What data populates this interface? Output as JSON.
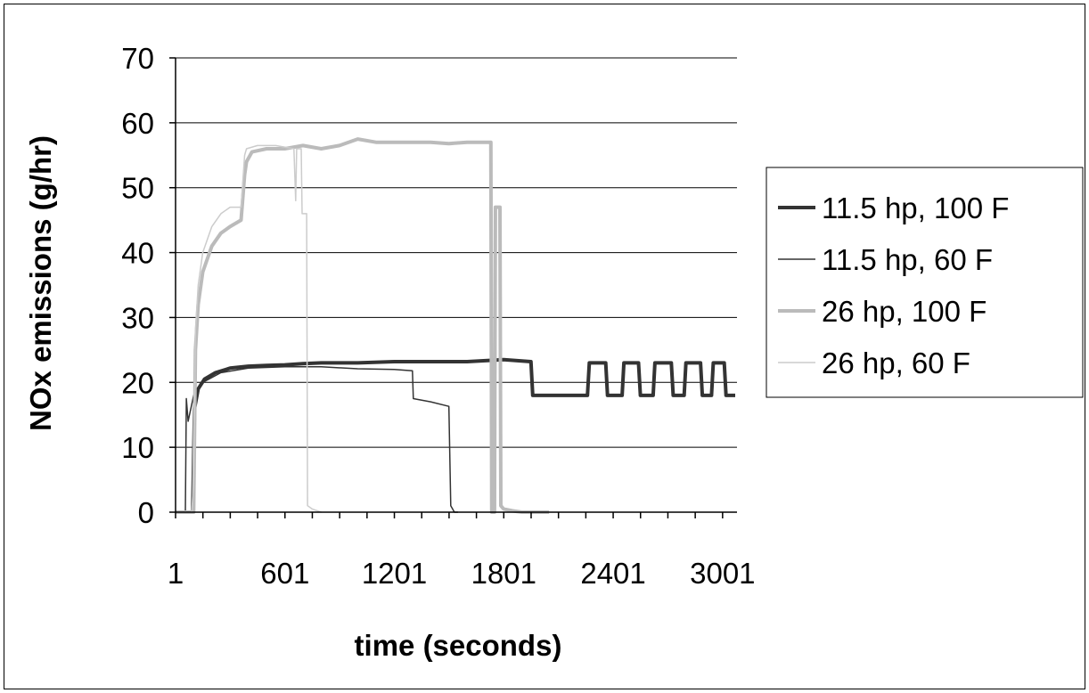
{
  "chart_data": {
    "type": "line",
    "title": "",
    "xlabel": "time (seconds)",
    "ylabel": "NOx emissions (g/hr)",
    "xlim": [
      1,
      3080
    ],
    "ylim": [
      0,
      70
    ],
    "x_ticks": [
      1,
      601,
      1201,
      1801,
      2401,
      3001
    ],
    "y_ticks": [
      0,
      10,
      20,
      30,
      40,
      50,
      60,
      70
    ],
    "grid": "horizontal",
    "legend_position": "right",
    "series": [
      {
        "name": "11.5 hp, 100 F",
        "color": "#333333",
        "style": "thick",
        "points": [
          [
            1,
            0
          ],
          [
            80,
            0
          ],
          [
            95,
            0
          ],
          [
            105,
            16
          ],
          [
            125,
            19
          ],
          [
            160,
            20.5
          ],
          [
            220,
            21.5
          ],
          [
            300,
            22.2
          ],
          [
            400,
            22.5
          ],
          [
            500,
            22.6
          ],
          [
            600,
            22.7
          ],
          [
            700,
            22.9
          ],
          [
            800,
            23
          ],
          [
            1000,
            23
          ],
          [
            1200,
            23.2
          ],
          [
            1400,
            23.2
          ],
          [
            1600,
            23.2
          ],
          [
            1800,
            23.5
          ],
          [
            1950,
            23.2
          ],
          [
            1960,
            18
          ],
          [
            2000,
            18
          ],
          [
            2100,
            18
          ],
          [
            2200,
            18
          ],
          [
            2260,
            18
          ],
          [
            2270,
            23
          ],
          [
            2360,
            23
          ],
          [
            2370,
            18
          ],
          [
            2450,
            18
          ],
          [
            2460,
            23
          ],
          [
            2540,
            23
          ],
          [
            2550,
            18
          ],
          [
            2620,
            18
          ],
          [
            2630,
            23
          ],
          [
            2720,
            23
          ],
          [
            2730,
            18
          ],
          [
            2790,
            18
          ],
          [
            2800,
            23
          ],
          [
            2880,
            23
          ],
          [
            2890,
            18
          ],
          [
            2940,
            18
          ],
          [
            2950,
            23
          ],
          [
            3010,
            23
          ],
          [
            3020,
            18
          ],
          [
            3070,
            18
          ]
        ]
      },
      {
        "name": "11.5 hp, 60 F",
        "color": "#333333",
        "style": "thin",
        "points": [
          [
            1,
            0
          ],
          [
            55,
            0
          ],
          [
            60,
            17.5
          ],
          [
            70,
            14
          ],
          [
            100,
            18
          ],
          [
            150,
            20
          ],
          [
            250,
            21.5
          ],
          [
            400,
            22.2
          ],
          [
            600,
            22.4
          ],
          [
            800,
            22.4
          ],
          [
            1000,
            22.1
          ],
          [
            1200,
            22
          ],
          [
            1300,
            21.8
          ],
          [
            1305,
            17.5
          ],
          [
            1400,
            17
          ],
          [
            1500,
            16.3
          ],
          [
            1510,
            1
          ],
          [
            1530,
            0
          ],
          [
            1550,
            0
          ]
        ]
      },
      {
        "name": "26 hp, 100 F",
        "color": "#bbbbbb",
        "style": "thick",
        "points": [
          [
            1,
            0
          ],
          [
            90,
            0
          ],
          [
            100,
            0
          ],
          [
            110,
            25
          ],
          [
            125,
            32
          ],
          [
            150,
            37
          ],
          [
            200,
            41
          ],
          [
            250,
            43
          ],
          [
            300,
            44
          ],
          [
            360,
            45
          ],
          [
            380,
            52
          ],
          [
            390,
            54
          ],
          [
            420,
            55.5
          ],
          [
            500,
            56
          ],
          [
            600,
            56
          ],
          [
            700,
            56.5
          ],
          [
            800,
            56
          ],
          [
            900,
            56.5
          ],
          [
            1000,
            57.5
          ],
          [
            1100,
            57
          ],
          [
            1200,
            57
          ],
          [
            1300,
            57
          ],
          [
            1400,
            57
          ],
          [
            1500,
            56.8
          ],
          [
            1600,
            57
          ],
          [
            1700,
            57
          ],
          [
            1730,
            57
          ],
          [
            1735,
            0
          ],
          [
            1750,
            0
          ],
          [
            1755,
            47
          ],
          [
            1780,
            47
          ],
          [
            1785,
            1
          ],
          [
            1800,
            0.5
          ],
          [
            1850,
            0.2
          ],
          [
            1900,
            0
          ],
          [
            2000,
            0
          ],
          [
            2050,
            0
          ]
        ]
      },
      {
        "name": "26 hp, 60 F",
        "color": "#cccccc",
        "style": "thin",
        "points": [
          [
            1,
            0
          ],
          [
            90,
            0
          ],
          [
            100,
            5
          ],
          [
            110,
            28
          ],
          [
            125,
            35
          ],
          [
            150,
            40
          ],
          [
            200,
            44
          ],
          [
            250,
            46
          ],
          [
            300,
            47
          ],
          [
            360,
            47
          ],
          [
            380,
            55
          ],
          [
            390,
            56
          ],
          [
            450,
            56.5
          ],
          [
            550,
            56.5
          ],
          [
            650,
            56
          ],
          [
            660,
            48
          ],
          [
            665,
            56
          ],
          [
            690,
            56
          ],
          [
            695,
            46
          ],
          [
            720,
            46
          ],
          [
            725,
            1
          ],
          [
            750,
            0.5
          ],
          [
            800,
            0
          ]
        ]
      }
    ]
  }
}
